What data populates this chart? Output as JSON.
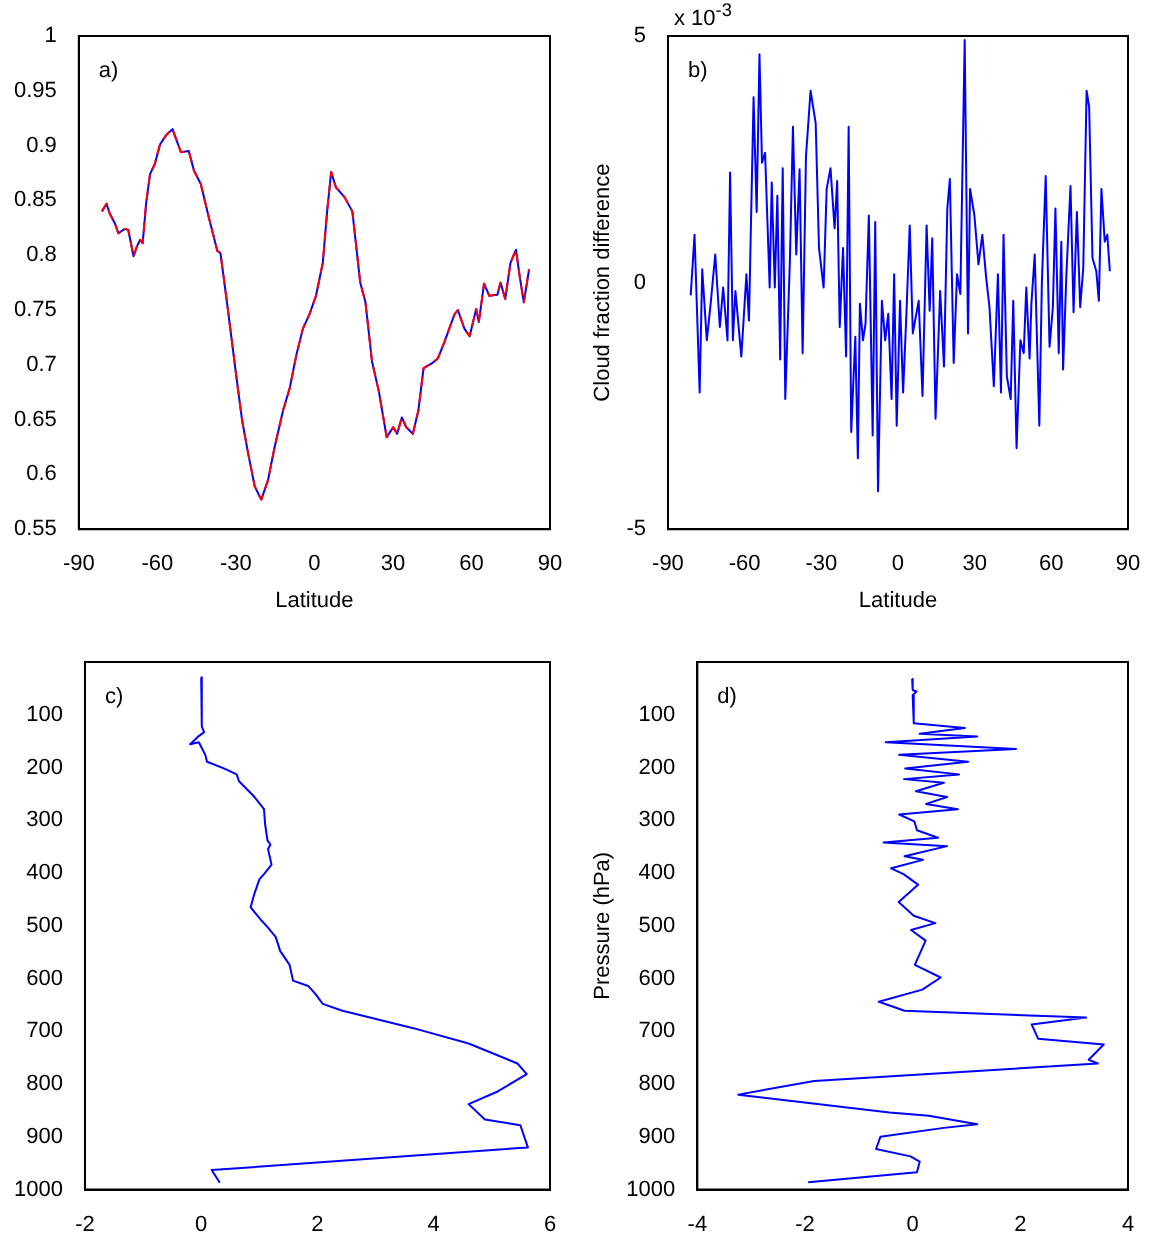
{
  "chart_data": [
    {
      "type": "line",
      "xlabel": "Latitude",
      "annotations": [
        "a)"
      ],
      "xlim": [
        -90,
        90
      ],
      "xticks": [
        -90,
        -60,
        -30,
        0,
        30,
        60,
        90
      ],
      "ylim": [
        0.55,
        1
      ],
      "yticks": [
        0.55,
        0.6,
        0.65,
        0.7,
        0.75,
        0.8,
        0.85,
        0.9,
        0.95,
        1
      ],
      "legend": false,
      "grid": false,
      "marker": "none",
      "x": [
        -81.2,
        -79.4,
        -78.2,
        -76.2,
        -74.9,
        -72.4,
        -71.1,
        -69.1,
        -67.8,
        -66.6,
        -65.6,
        -64.3,
        -62.8,
        -61,
        -59,
        -56.5,
        -54.2,
        -53,
        -51,
        -48,
        -46,
        -43.4,
        -40.4,
        -37.1,
        -35.9,
        -33.4,
        -29.6,
        -27.6,
        -25.3,
        -22.8,
        -20.3,
        -17.7,
        -15.2,
        -12,
        -9.4,
        -6.9,
        -4.4,
        -1.9,
        0.6,
        3.2,
        4.9,
        6.4,
        8.2,
        11.5,
        14.5,
        17.5,
        19.5,
        22,
        24.6,
        27.6,
        30.1,
        31.6,
        33.4,
        35.1,
        37.6,
        39.7,
        41.7,
        44.7,
        47.2,
        49.7,
        53.5,
        54.8,
        57.3,
        59.3,
        61.8,
        62.8,
        64.8,
        66.8,
        69.9,
        71.1,
        72.9,
        74.9,
        77,
        78.4,
        80,
        82
      ],
      "series": [
        {
          "color": "#0000ff",
          "line_style": "solid",
          "values": [
            0.84,
            0.847,
            0.838,
            0.829,
            0.82,
            0.824,
            0.823,
            0.799,
            0.808,
            0.814,
            0.811,
            0.847,
            0.874,
            0.883,
            0.901,
            0.91,
            0.915,
            0.907,
            0.894,
            0.895,
            0.877,
            0.865,
            0.835,
            0.804,
            0.802,
            0.757,
            0.685,
            0.649,
            0.619,
            0.589,
            0.577,
            0.595,
            0.625,
            0.658,
            0.679,
            0.709,
            0.733,
            0.746,
            0.763,
            0.793,
            0.841,
            0.876,
            0.862,
            0.853,
            0.84,
            0.775,
            0.757,
            0.703,
            0.676,
            0.634,
            0.643,
            0.637,
            0.652,
            0.643,
            0.637,
            0.658,
            0.697,
            0.701,
            0.706,
            0.721,
            0.746,
            0.75,
            0.733,
            0.726,
            0.751,
            0.739,
            0.774,
            0.763,
            0.764,
            0.775,
            0.76,
            0.793,
            0.805,
            0.781,
            0.757,
            0.787
          ]
        },
        {
          "color": "#ff0000",
          "line_style": "dashed",
          "values": [
            0.84,
            0.847,
            0.838,
            0.829,
            0.82,
            0.824,
            0.823,
            0.799,
            0.808,
            0.814,
            0.811,
            0.847,
            0.874,
            0.883,
            0.901,
            0.91,
            0.915,
            0.907,
            0.894,
            0.895,
            0.877,
            0.865,
            0.835,
            0.804,
            0.802,
            0.757,
            0.685,
            0.649,
            0.619,
            0.589,
            0.577,
            0.595,
            0.625,
            0.658,
            0.679,
            0.709,
            0.733,
            0.746,
            0.763,
            0.793,
            0.841,
            0.876,
            0.862,
            0.853,
            0.84,
            0.775,
            0.757,
            0.703,
            0.676,
            0.634,
            0.643,
            0.637,
            0.652,
            0.643,
            0.637,
            0.658,
            0.697,
            0.701,
            0.706,
            0.721,
            0.746,
            0.75,
            0.733,
            0.726,
            0.751,
            0.739,
            0.774,
            0.763,
            0.764,
            0.775,
            0.76,
            0.793,
            0.805,
            0.781,
            0.757,
            0.787
          ]
        }
      ]
    },
    {
      "type": "line",
      "xlabel": "Latitude",
      "ylabel": "Cloud fraction difference",
      "annotations": [
        "b)",
        "x 10$^{-3}$"
      ],
      "xlim": [
        -90,
        90
      ],
      "xticks": [
        -90,
        -60,
        -30,
        0,
        30,
        60,
        90
      ],
      "ylim": [
        -5,
        5
      ],
      "yticks": [
        -5,
        0,
        5
      ],
      "legend": false,
      "grid": false,
      "marker": "none",
      "x": [
        -81.1,
        -79.6,
        -77.6,
        -76.6,
        -74.8,
        -73.3,
        -71.5,
        -69.7,
        -68.4,
        -66.7,
        -65.7,
        -64.6,
        -63.6,
        -61.3,
        -59.3,
        -58.3,
        -56.5,
        -55.3,
        -54.2,
        -53.2,
        -52,
        -50.2,
        -49.4,
        -48.2,
        -47.2,
        -46.1,
        -45.1,
        -44.1,
        -42.3,
        -41.1,
        -39.8,
        -38.5,
        -37.3,
        -36,
        -34.2,
        -32.2,
        -30.9,
        -29.1,
        -27.9,
        -26.4,
        -24.8,
        -23.8,
        -22.8,
        -21.5,
        -20.3,
        -19.3,
        -18.3,
        -16.7,
        -15.7,
        -14.9,
        -13.7,
        -12.7,
        -11.4,
        -9.9,
        -8.9,
        -7.8,
        -6.3,
        -5,
        -3.8,
        -2.5,
        -1.5,
        -0.5,
        0.8,
        2,
        3.3,
        4.6,
        5.8,
        8.1,
        9.6,
        11.2,
        12.4,
        13.4,
        14.7,
        16.5,
        18,
        19.3,
        20.3,
        21.8,
        23.1,
        24.4,
        26.1,
        27.4,
        28.2,
        29.9,
        31.5,
        33,
        34.5,
        35.8,
        37.5,
        39.1,
        40.3,
        41.3,
        42.6,
        44.1,
        45.1,
        46.4,
        47.9,
        49.2,
        50.2,
        51.5,
        52.2,
        53.5,
        55.3,
        56.3,
        57.8,
        59.3,
        60.6,
        61.6,
        62.9,
        63.9,
        64.6,
        65.9,
        67.5,
        68.7,
        70,
        71.3,
        72.5,
        73.8,
        74.8,
        76.1,
        77.6,
        78.6,
        79.6,
        80.9,
        81.9,
        82.9
      ],
      "series": [
        {
          "color": "#0000ff",
          "line_style": "solid",
          "values": [
            -0.26,
            0.97,
            -2.23,
            0.27,
            -1.17,
            -0.43,
            0.57,
            -0.9,
            -0.1,
            -1.17,
            2.23,
            -1.17,
            -0.17,
            -1.5,
            0.17,
            -0.77,
            3.76,
            1.43,
            4.63,
            2.43,
            2.63,
            -0.1,
            2.03,
            -0.1,
            1.76,
            -1.56,
            2.32,
            -2.36,
            0.43,
            3.16,
            0.57,
            2.3,
            -1.43,
            2.56,
            3.89,
            3.23,
            0.7,
            -0.1,
            1.9,
            2.32,
            1.1,
            2.06,
            -0.9,
            0.7,
            -1.5,
            3.16,
            -3.03,
            -1.1,
            -3.56,
            -0.43,
            -1.17,
            -0.83,
            1.36,
            -3.1,
            1.23,
            -4.23,
            -0.37,
            -1.17,
            -0.63,
            -2.36,
            0.17,
            -2.9,
            -0.37,
            -2.23,
            -0.63,
            1.16,
            -1.03,
            -0.37,
            -2.3,
            1.16,
            -0.57,
            0.9,
            -2.76,
            -0.17,
            -1.7,
            1.5,
            2.1,
            -1.63,
            0.17,
            -0.23,
            4.92,
            -1.03,
            1.9,
            1.36,
            0.37,
            0.97,
            0.1,
            -0.5,
            -2.1,
            0.17,
            -2.23,
            0.97,
            -1.9,
            -2.36,
            -0.37,
            -3.36,
            -1.17,
            -1.43,
            -0.1,
            -1.54,
            -0.43,
            0.57,
            -2.9,
            0,
            2.16,
            -1.3,
            -0.5,
            1.5,
            -1.43,
            0.83,
            -1.76,
            0.17,
            1.96,
            -0.6,
            1.43,
            -0.5,
            0.3,
            3.89,
            3.56,
            0.5,
            0.23,
            -0.37,
            1.9,
            0.83,
            0.97,
            0.23
          ]
        }
      ]
    },
    {
      "type": "line",
      "annotations": [
        "c)"
      ],
      "xlim": [
        -2,
        6
      ],
      "xticks": [
        -2,
        0,
        2,
        4,
        6
      ],
      "ylim": [
        1000,
        0
      ],
      "yticks": [
        100,
        200,
        300,
        400,
        500,
        600,
        700,
        800,
        900,
        1000
      ],
      "legend": false,
      "grid": false,
      "marker": "none",
      "x": [
        0.0,
        0.01,
        0.05,
        -0.06,
        -0.19,
        -0.04,
        0.07,
        0.1,
        0.4,
        0.61,
        0.65,
        0.91,
        1.08,
        1.1,
        1.14,
        1.19,
        1.15,
        1.21,
        1.08,
        1.0,
        0.91,
        0.85,
        1.02,
        1.13,
        1.28,
        1.36,
        1.52,
        1.58,
        1.84,
        1.97,
        2.09,
        2.43,
        3.65,
        4.6,
        5.44,
        5.6,
        5.1,
        4.6,
        4.88,
        5.49,
        5.62,
        0.18,
        0.32
      ],
      "series": [
        {
          "color": "#0000ff",
          "line_style": "solid",
          "values": [
            29,
            122,
            133,
            142,
            156,
            152,
            176,
            189,
            202,
            213,
            226,
            255,
            279,
            308,
            338,
            346,
            355,
            384,
            402,
            412,
            441,
            465,
            488,
            501,
            521,
            548,
            574,
            604,
            614,
            630,
            648,
            661,
            694,
            723,
            761,
            781,
            814,
            838,
            867,
            878,
            920,
            963,
            987
          ]
        }
      ]
    },
    {
      "type": "line",
      "ylabel": "Pressure (hPa)",
      "annotations": [
        "d)"
      ],
      "xlim": [
        -4,
        4
      ],
      "xticks": [
        -4,
        -2,
        0,
        2,
        4
      ],
      "ylim": [
        1000,
        0
      ],
      "yticks": [
        100,
        200,
        300,
        400,
        500,
        600,
        700,
        800,
        900,
        1000
      ],
      "legend": false,
      "grid": false,
      "marker": "none",
      "x": [
        -0.01,
        0.0,
        0.07,
        0,
        0.02,
        0.97,
        0.13,
        1.2,
        -0.5,
        1.92,
        -0.25,
        1.03,
        -0.14,
        0.86,
        -0.16,
        0.58,
        0.06,
        0.64,
        0.25,
        0.84,
        -0.25,
        0.03,
        0.08,
        0.47,
        -0.54,
        0.64,
        -0.15,
        0.19,
        -0.4,
        -0.17,
        0.1,
        -0.26,
        0.02,
        0.42,
        -0.03,
        0.24,
        0.04,
        0.52,
        0.18,
        -0.63,
        -0.15,
        3.22,
        2.21,
        2.33,
        3.55,
        3.27,
        3.44,
        -1.83,
        -3.24,
        -0.43,
        0.3,
        1.2,
        0.58,
        -0.6,
        -0.68,
        -0.04,
        0.13,
        0.08,
        -1.94
      ],
      "series": [
        {
          "color": "#0000ff",
          "line_style": "solid",
          "values": [
            32,
            53,
            56,
            63,
            116,
            125,
            136,
            141,
            152,
            165,
            176,
            189,
            202,
            213,
            222,
            229,
            245,
            256,
            269,
            279,
            289,
            302,
            319,
            333,
            342,
            349,
            368,
            375,
            391,
            402,
            422,
            455,
            481,
            495,
            508,
            528,
            574,
            598,
            621,
            644,
            661,
            674,
            687,
            714,
            725,
            754,
            761,
            794,
            820,
            854,
            860,
            876,
            883,
            900,
            923,
            937,
            947,
            967,
            986
          ]
        }
      ]
    }
  ]
}
